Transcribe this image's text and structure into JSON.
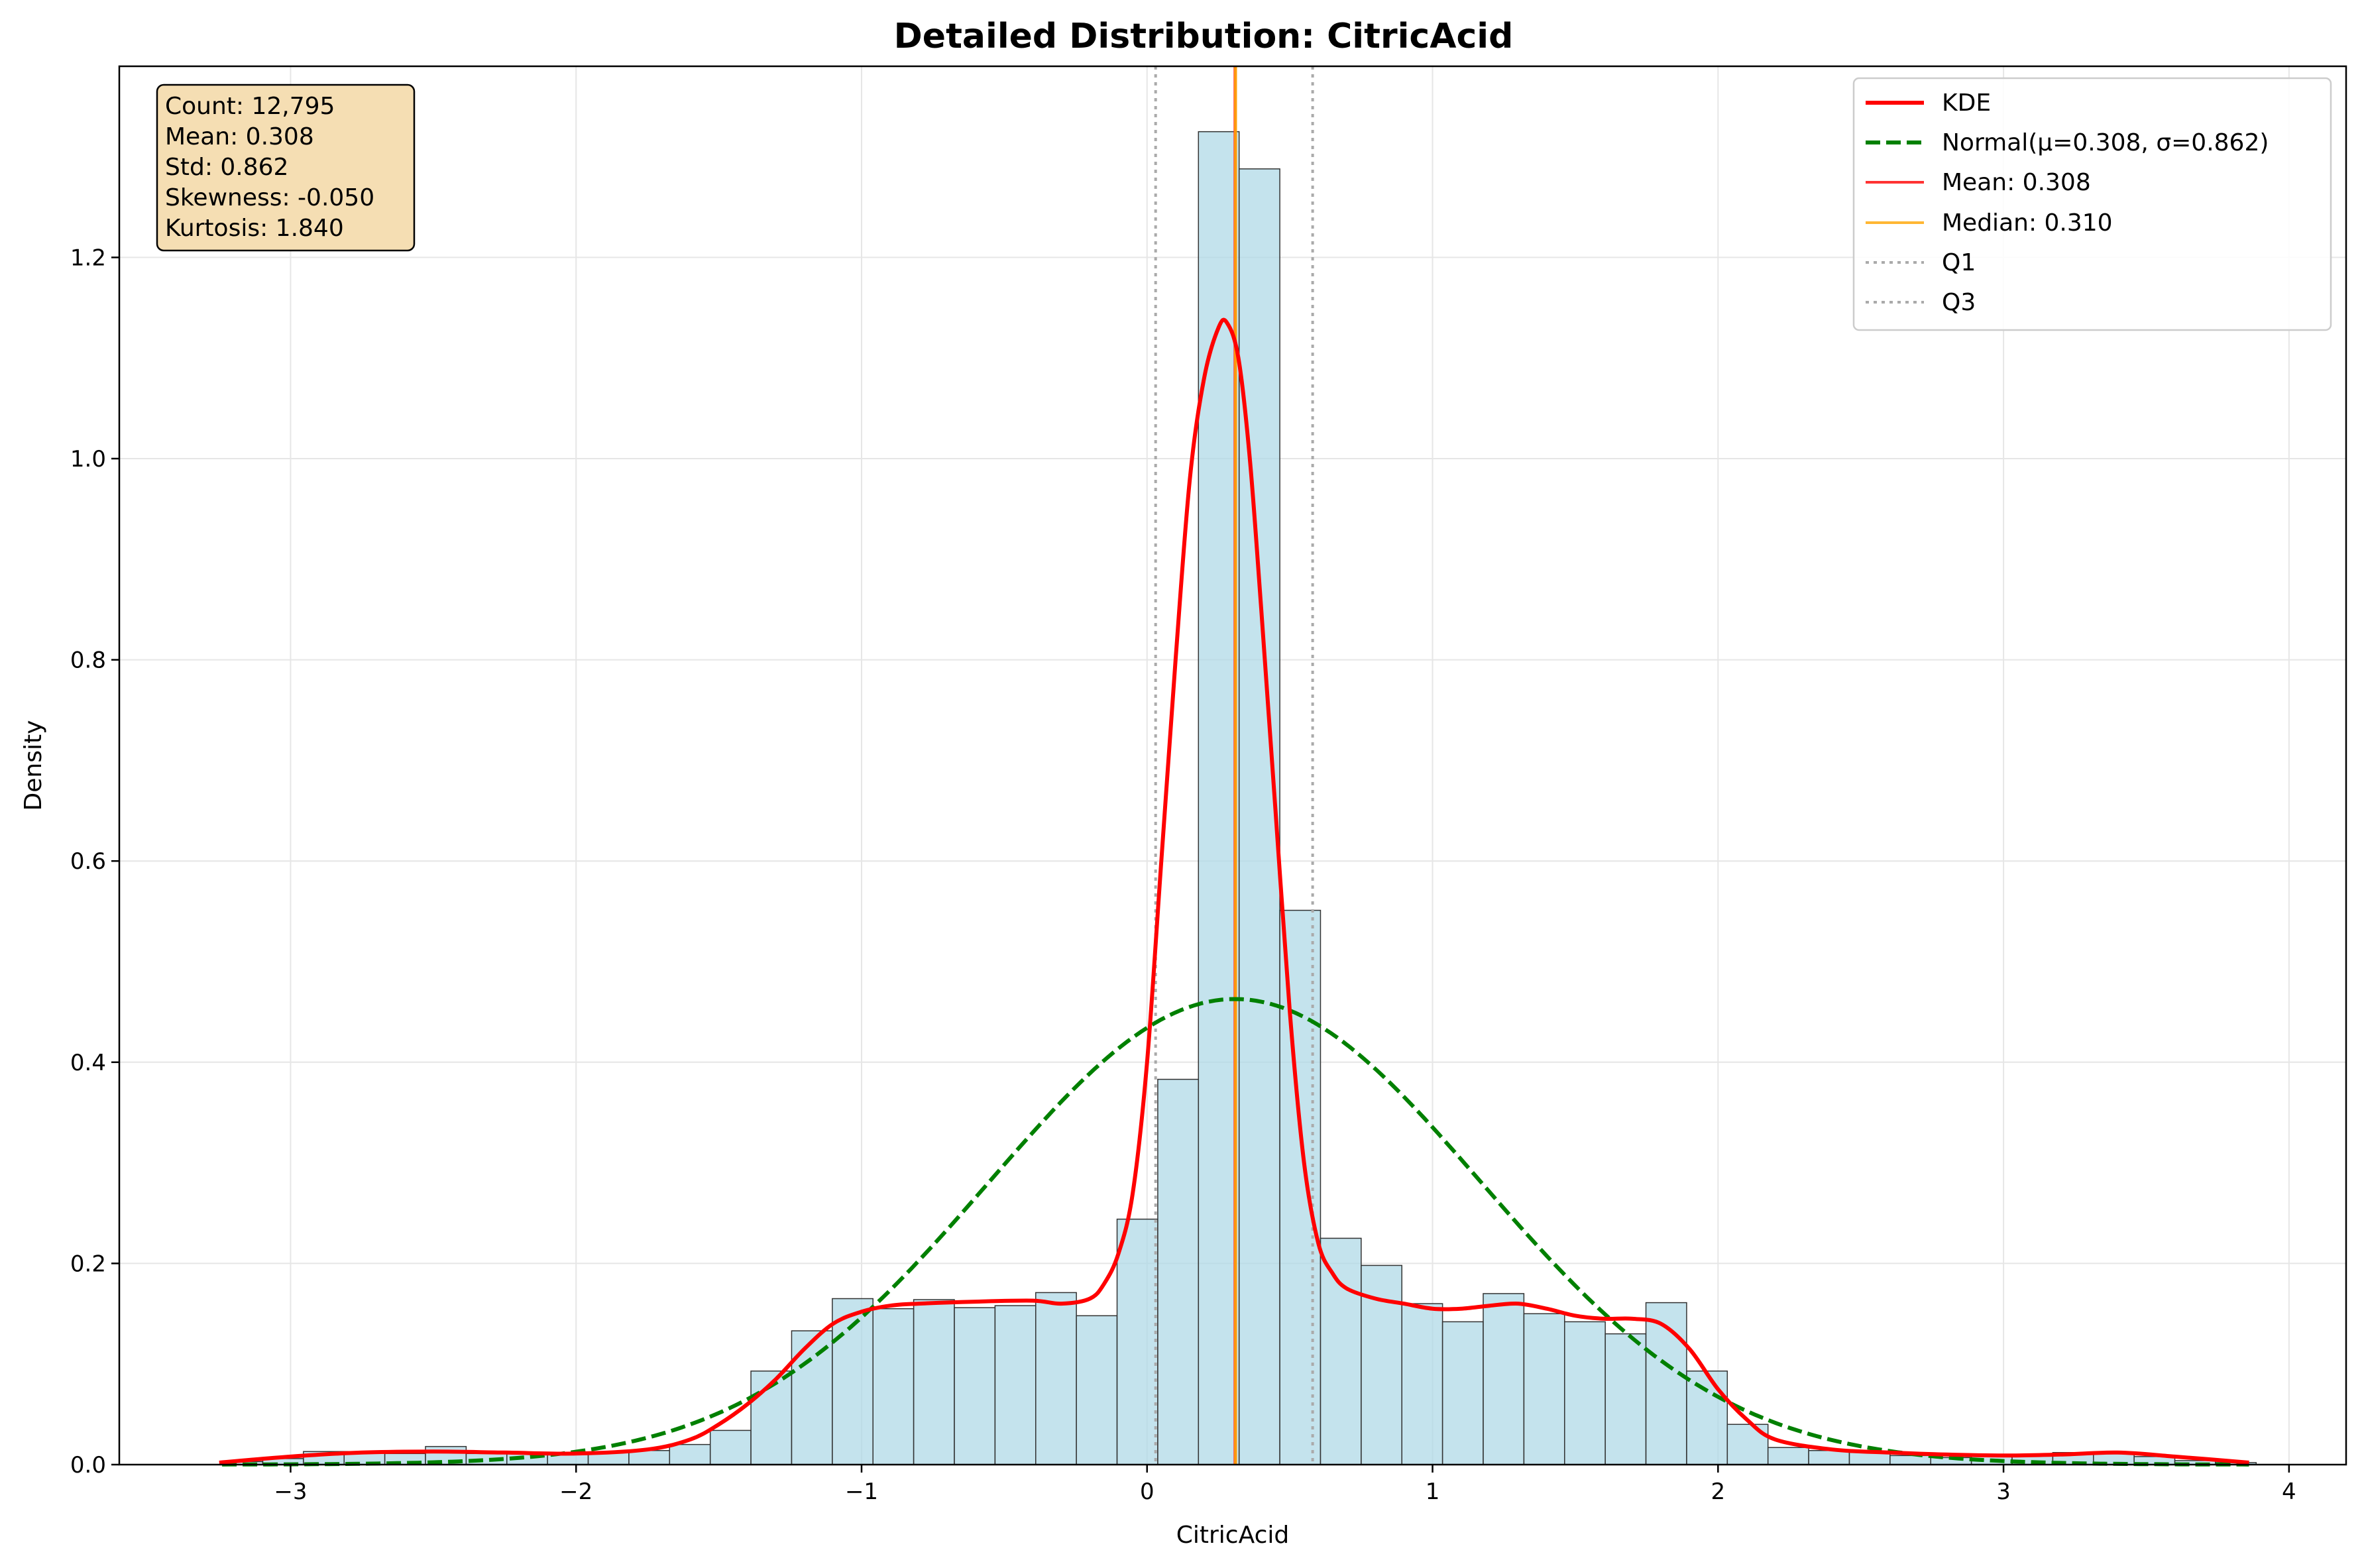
{
  "chart_data": {
    "type": "bar",
    "title": "Detailed Distribution: CitricAcid",
    "xlabel": "CitricAcid",
    "ylabel": "Density",
    "xlim": [
      -3.6,
      4.2
    ],
    "ylim": [
      0,
      1.39
    ],
    "xticks": [
      -3,
      -2,
      -1,
      0,
      1,
      2,
      3,
      4
    ],
    "xtick_labels": [
      "−3",
      "−2",
      "−1",
      "0",
      "1",
      "2",
      "3",
      "4"
    ],
    "yticks": [
      0.0,
      0.2,
      0.4,
      0.6,
      0.8,
      1.0,
      1.2
    ],
    "ytick_labels": [
      "0.0",
      "0.2",
      "0.4",
      "0.6",
      "0.8",
      "1.0",
      "1.2"
    ],
    "grid": true,
    "legend_position": "top-right",
    "histogram": {
      "bin_start": -3.24,
      "bin_width": 0.1425,
      "densities": [
        0.003,
        0.006,
        0.013,
        0.013,
        0.011,
        0.018,
        0.011,
        0.012,
        0.012,
        0.012,
        0.014,
        0.02,
        0.034,
        0.093,
        0.133,
        0.165,
        0.155,
        0.164,
        0.156,
        0.158,
        0.171,
        0.148,
        0.244,
        0.383,
        1.325,
        1.288,
        0.551,
        0.225,
        0.198,
        0.16,
        0.142,
        0.17,
        0.15,
        0.142,
        0.13,
        0.161,
        0.093,
        0.04,
        0.017,
        0.014,
        0.013,
        0.009,
        0.007,
        0.009,
        0.009,
        0.012,
        0.012,
        0.008,
        0.004,
        0.002
      ]
    },
    "series": [
      {
        "name": "KDE",
        "color": "#ff0000",
        "x": [
          -3.25,
          -3.0,
          -2.75,
          -2.5,
          -2.25,
          -2.0,
          -1.75,
          -1.6,
          -1.5,
          -1.4,
          -1.3,
          -1.2,
          -1.1,
          -1.0,
          -0.9,
          -0.8,
          -0.6,
          -0.4,
          -0.3,
          -0.2,
          -0.15,
          -0.1,
          -0.05,
          0.0,
          0.05,
          0.1,
          0.15,
          0.2,
          0.25,
          0.28,
          0.32,
          0.36,
          0.4,
          0.45,
          0.5,
          0.55,
          0.6,
          0.65,
          0.7,
          0.8,
          0.9,
          1.0,
          1.1,
          1.2,
          1.3,
          1.4,
          1.5,
          1.6,
          1.7,
          1.8,
          1.9,
          2.0,
          2.1,
          2.2,
          2.4,
          2.6,
          2.8,
          3.0,
          3.2,
          3.4,
          3.6,
          3.86
        ],
        "y": [
          0.002,
          0.008,
          0.012,
          0.013,
          0.012,
          0.011,
          0.015,
          0.025,
          0.04,
          0.06,
          0.085,
          0.115,
          0.14,
          0.152,
          0.158,
          0.16,
          0.162,
          0.163,
          0.16,
          0.165,
          0.18,
          0.21,
          0.27,
          0.4,
          0.6,
          0.8,
          0.98,
          1.08,
          1.13,
          1.135,
          1.1,
          1.0,
          0.85,
          0.65,
          0.45,
          0.3,
          0.22,
          0.19,
          0.175,
          0.165,
          0.16,
          0.155,
          0.155,
          0.158,
          0.16,
          0.155,
          0.148,
          0.145,
          0.145,
          0.14,
          0.115,
          0.075,
          0.045,
          0.025,
          0.015,
          0.012,
          0.01,
          0.009,
          0.01,
          0.012,
          0.008,
          0.002
        ]
      },
      {
        "name": "Normal(μ=0.308, σ=0.862)",
        "color": "#008000",
        "mu": 0.308,
        "sigma": 0.862,
        "x_range": [
          -3.24,
          3.86
        ]
      }
    ],
    "lines": [
      {
        "name": "Mean: 0.308",
        "x": 0.308,
        "color": "#ff3333"
      },
      {
        "name": "Median: 0.310",
        "x": 0.31,
        "color": "#ffa500"
      },
      {
        "name": "Q1",
        "x": 0.03,
        "color": "#aaaaaa"
      },
      {
        "name": "Q3",
        "x": 0.58,
        "color": "#aaaaaa"
      }
    ],
    "legend": [
      "KDE",
      "Normal(μ=0.308, σ=0.862)",
      "Mean: 0.308",
      "Median: 0.310",
      "Q1",
      "Q3"
    ],
    "stats_box": [
      "Count: 12,795",
      "Mean: 0.308",
      "Std: 0.862",
      "Skewness: -0.050",
      "Kurtosis: 1.840"
    ],
    "colors": {
      "bar_fill": "#add8e6",
      "bar_edge": "#333333",
      "stats_box_fill": "#f5deb3"
    }
  }
}
